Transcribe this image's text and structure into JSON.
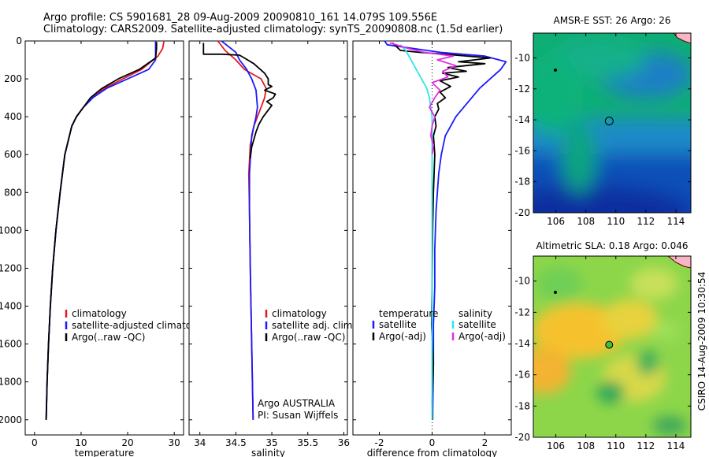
{
  "header": {
    "line1": "Argo profile: CS 5901681_28 09-Aug-2009 20090810_161 14.079S 109.556E",
    "line2": "Climatology: CARS2009. Satellite-adjusted climatology: synTS_20090808.nc (1.5d earlier)"
  },
  "credit": "CSIRO 14-Aug-2009 10:30:54",
  "colors": {
    "red": "#e41a1c",
    "blue": "#1a1aff",
    "black": "#000000",
    "cyan": "#2ee6e6",
    "magenta": "#e42ee4"
  },
  "chart_data": [
    {
      "type": "line",
      "name": "temperature-profile",
      "xlabel": "temperature",
      "ylabel": "",
      "xlim": [
        -2,
        32
      ],
      "ylim": [
        2080,
        0
      ],
      "xticks": [
        0,
        10,
        20,
        30
      ],
      "yticks": [
        0,
        200,
        400,
        600,
        800,
        1000,
        1200,
        1400,
        1600,
        1800,
        2000
      ],
      "legend": [
        "climatology",
        "satellite-adjusted climatology",
        "Argo(..raw -QC)"
      ],
      "series": [
        {
          "name": "climatology",
          "color": "red",
          "x": [
            27.8,
            27.5,
            26.5,
            23,
            19,
            15,
            12.5,
            10.5,
            9,
            8,
            6.5,
            5.5,
            4.6,
            3.9,
            3.4,
            3.0,
            2.7,
            2.5
          ],
          "y": [
            0,
            40,
            80,
            150,
            200,
            250,
            300,
            350,
            400,
            450,
            600,
            800,
            1000,
            1200,
            1400,
            1600,
            1800,
            2000
          ]
        },
        {
          "name": "satellite-adjusted climatology",
          "color": "blue",
          "x": [
            26.0,
            26.0,
            26.0,
            24.5,
            20,
            15.5,
            12.5,
            10.5,
            9,
            8,
            6.5,
            5.5,
            4.6,
            3.9,
            3.4,
            3.0,
            2.7,
            2.5
          ],
          "y": [
            0,
            40,
            100,
            150,
            200,
            250,
            300,
            350,
            400,
            450,
            600,
            800,
            1000,
            1200,
            1400,
            1600,
            1800,
            2000
          ]
        },
        {
          "name": "Argo(..raw -QC)",
          "color": "black",
          "x": [
            26.2,
            26.2,
            26.0,
            22.5,
            18,
            14.5,
            12,
            10.5,
            9,
            8,
            6.5,
            5.5,
            4.6,
            3.9,
            3.4,
            3.0,
            2.7,
            2.5
          ],
          "y": [
            5,
            40,
            90,
            150,
            200,
            250,
            300,
            350,
            400,
            450,
            600,
            800,
            1000,
            1200,
            1400,
            1600,
            1800,
            2000
          ]
        }
      ]
    },
    {
      "type": "line",
      "name": "salinity-profile",
      "xlabel": "salinity",
      "xlim": [
        33.85,
        36.05
      ],
      "ylim": [
        2080,
        0
      ],
      "xticks": [
        34,
        34.5,
        35,
        35.5,
        36
      ],
      "xtick_labels": [
        "34",
        "34.5",
        "35",
        "35.5",
        "36"
      ],
      "legend": [
        "climatology",
        "satellite adj. clim.",
        "Argo(..raw -QC)"
      ],
      "annotation": [
        "Argo AUSTRALIA",
        "PI: Susan Wijffels"
      ],
      "series": [
        {
          "name": "climatology",
          "color": "red",
          "x": [
            34.25,
            34.35,
            34.5,
            34.62,
            34.85,
            34.92,
            34.9,
            34.85,
            34.75,
            34.7,
            34.68,
            34.69,
            34.7,
            34.71,
            34.72,
            34.73,
            34.74
          ],
          "y": [
            0,
            50,
            100,
            150,
            200,
            250,
            300,
            350,
            450,
            550,
            700,
            900,
            1200,
            1400,
            1600,
            1800,
            2000
          ]
        },
        {
          "name": "satellite adj. clim.",
          "color": "blue",
          "x": [
            34.3,
            34.5,
            34.55,
            34.65,
            34.72,
            34.78,
            34.8,
            34.78,
            34.72,
            34.69,
            34.69,
            34.7,
            34.71,
            34.72,
            34.73,
            34.74
          ],
          "y": [
            0,
            60,
            100,
            150,
            200,
            260,
            350,
            400,
            500,
            700,
            900,
            1200,
            1400,
            1600,
            1800,
            2000
          ]
        },
        {
          "name": "Argo(..raw -QC)",
          "color": "black",
          "x": [
            34.05,
            34.05,
            34.3,
            34.55,
            34.62,
            34.75,
            34.9,
            34.95,
            34.95,
            35.0,
            34.9,
            35.05,
            35.02,
            34.93,
            35.0,
            34.92,
            34.88,
            34.82,
            34.78,
            34.72,
            34.7
          ],
          "y": [
            10,
            70,
            70,
            75,
            90,
            120,
            170,
            200,
            230,
            240,
            260,
            280,
            300,
            320,
            340,
            380,
            400,
            440,
            480,
            560,
            620
          ]
        }
      ]
    },
    {
      "type": "line",
      "name": "difference-profile",
      "xlabel": "difference from climatology",
      "xlim": [
        -3,
        3
      ],
      "ylim": [
        2080,
        0
      ],
      "xticks": [
        -2,
        0,
        2
      ],
      "legend_left": {
        "header": "temperature",
        "items": [
          "satellite",
          "Argo(-adj)"
        ]
      },
      "legend_right": {
        "header": "salinity",
        "items": [
          "satellite",
          "Argo(-adj)"
        ]
      },
      "series": [
        {
          "name": "temperature satellite",
          "color": "blue",
          "x": [
            -1.8,
            -1.7,
            0.3,
            2.0,
            2.8,
            2.6,
            2.2,
            1.8,
            1.5,
            1.2,
            0.9,
            0.7,
            0.5,
            0.35,
            0.25,
            0.15,
            0.1,
            0.1,
            0.05,
            0.05,
            0.03,
            0.02
          ],
          "y": [
            0,
            20,
            60,
            80,
            110,
            150,
            200,
            250,
            300,
            350,
            400,
            450,
            500,
            600,
            700,
            900,
            1100,
            1300,
            1500,
            1700,
            1900,
            2000
          ]
        },
        {
          "name": "temperature Argo(-adj)",
          "color": "black",
          "x": [
            -1.5,
            -1.2,
            -0.5,
            0.5,
            2.2,
            1.0,
            2.0,
            0.6,
            1.3,
            0.4,
            1.0,
            0.3,
            0.7,
            0.3,
            0.5,
            0.2,
            0.25,
            0.1,
            0.15,
            0.05,
            0.1,
            0.05,
            0.02,
            0.0,
            -0.02,
            0.05,
            0.0,
            0.02
          ],
          "y": [
            10,
            50,
            60,
            70,
            90,
            110,
            120,
            140,
            160,
            170,
            190,
            210,
            240,
            270,
            300,
            330,
            360,
            400,
            450,
            500,
            600,
            800,
            1000,
            1300,
            1500,
            1700,
            1900,
            2000
          ]
        },
        {
          "name": "salinity satellite",
          "color": "cyan",
          "x": [
            -1.2,
            -1.0,
            -0.8,
            -0.6,
            -0.4,
            -0.2,
            -0.1,
            -0.05,
            0.0,
            0.0,
            0.0,
            0.0,
            0.0,
            0.0
          ],
          "y": [
            20,
            50,
            100,
            150,
            200,
            250,
            300,
            350,
            400,
            600,
            800,
            1000,
            1500,
            2000
          ]
        },
        {
          "name": "salinity Argo(-adj)",
          "color": "magenta",
          "x": [
            -1.6,
            -0.9,
            -0.3,
            0.8,
            0.2,
            0.9,
            0.4,
            0.6,
            0.0,
            0.3,
            0.1,
            -0.1,
            0.1,
            0.0,
            -0.05,
            0.05,
            0.0
          ],
          "y": [
            10,
            40,
            60,
            80,
            100,
            130,
            160,
            190,
            220,
            260,
            300,
            350,
            400,
            450,
            500,
            550,
            600
          ]
        }
      ]
    },
    {
      "type": "heatmap",
      "name": "sst-map",
      "title": "AMSR-E SST: 26 Argo: 26",
      "xlim": [
        104.5,
        115
      ],
      "ylim": [
        -20,
        -8.4
      ],
      "xticks": [
        106,
        108,
        110,
        112,
        114
      ],
      "yticks": [
        -10,
        -12,
        -14,
        -16,
        -18,
        -20
      ],
      "argo_marker": {
        "lon": 109.556,
        "lat": -14.079
      }
    },
    {
      "type": "heatmap",
      "name": "sla-map",
      "title": "Altimetric SLA: 0.18 Argo: 0.046",
      "xlim": [
        104.5,
        115
      ],
      "ylim": [
        -20,
        -8.4
      ],
      "xticks": [
        106,
        108,
        110,
        112,
        114
      ],
      "yticks": [
        -10,
        -12,
        -14,
        -16,
        -18,
        -20
      ],
      "argo_marker": {
        "lon": 109.556,
        "lat": -14.079
      }
    }
  ]
}
